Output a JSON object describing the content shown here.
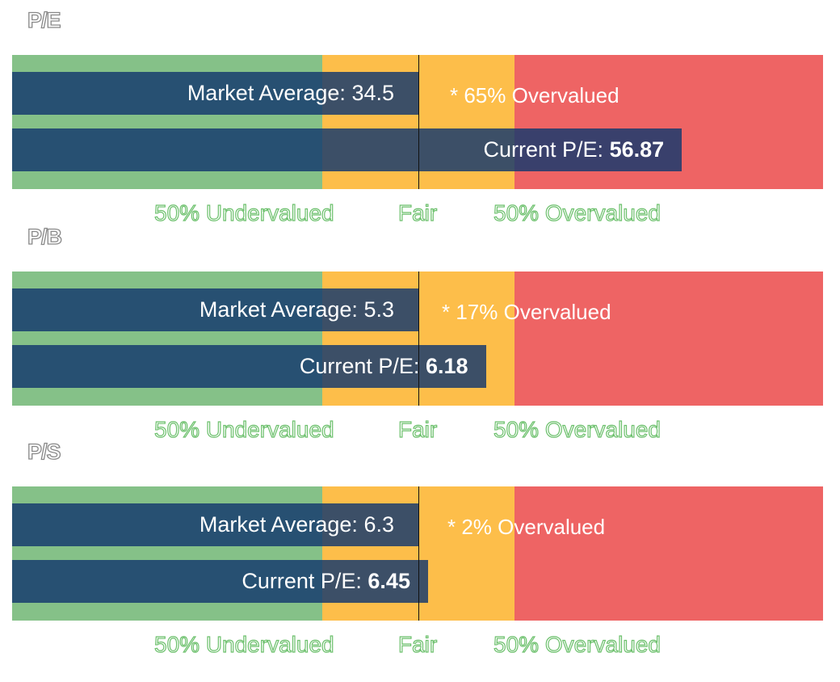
{
  "chart_data": [
    {
      "type": "bar",
      "title": "P/E",
      "market_average_label": "Market Average:",
      "market_average": 34.5,
      "current_label": "Current P/E:",
      "current": 56.87,
      "note": "* 65% Overvalued",
      "zones": [
        "50% Undervalued",
        "Fair",
        "50% Overvalued"
      ],
      "colors": {
        "undervalued": "#85c188",
        "fair": "#fdbe4a",
        "overvalued": "#ee6464",
        "bar": "#14386e"
      }
    },
    {
      "type": "bar",
      "title": "P/B",
      "market_average_label": "Market Average:",
      "market_average": 5.3,
      "current_label": "Current P/E:",
      "current": 6.18,
      "note": "* 17% Overvalued",
      "zones": [
        "50% Undervalued",
        "Fair",
        "50% Overvalued"
      ],
      "colors": {
        "undervalued": "#85c188",
        "fair": "#fdbe4a",
        "overvalued": "#ee6464",
        "bar": "#14386e"
      }
    },
    {
      "type": "bar",
      "title": "P/S",
      "market_average_label": "Market Average:",
      "market_average": 6.3,
      "current_label": "Current P/E:",
      "current": 6.45,
      "note": "* 2% Overvalued",
      "zones": [
        "50% Undervalued",
        "Fair",
        "50% Overvalued"
      ],
      "colors": {
        "undervalued": "#85c188",
        "fair": "#fdbe4a",
        "overvalued": "#ee6464",
        "bar": "#14386e"
      }
    }
  ]
}
